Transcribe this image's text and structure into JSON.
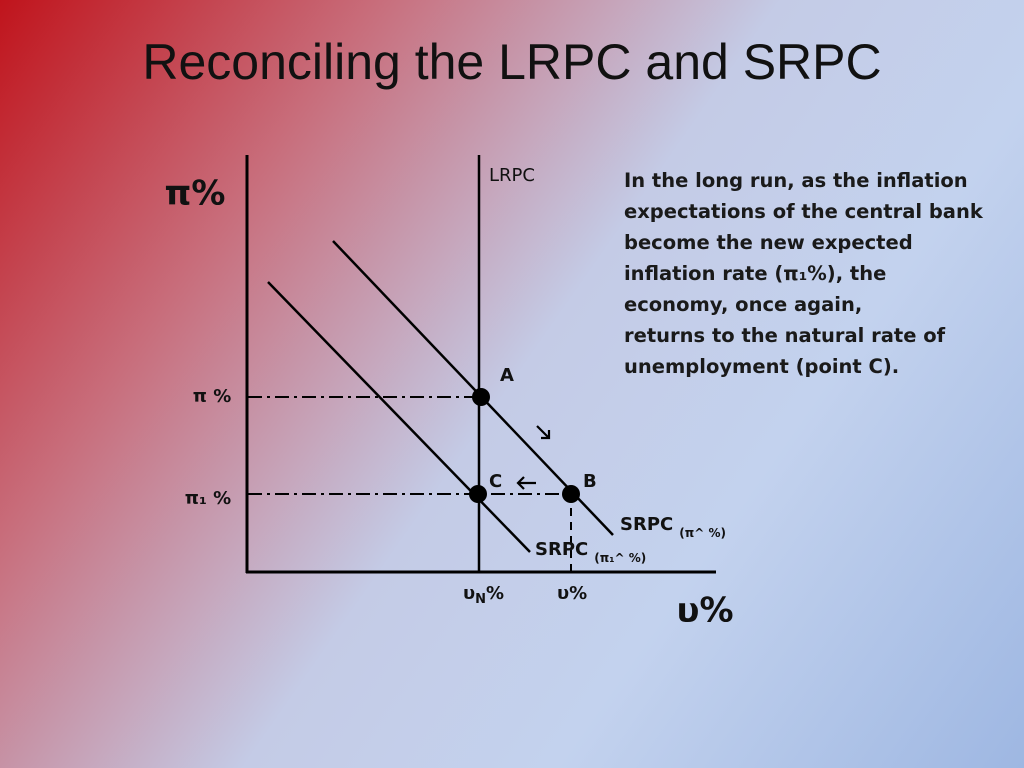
{
  "title": "Reconciling the LRPC and SRPC",
  "axes": {
    "y_title": "π%",
    "x_title": "υ%"
  },
  "levels": [
    "π %",
    "π₁ %"
  ],
  "x_levels": [
    {
      "base": "υ",
      "sub": "N",
      "rest": "%"
    },
    "υ%"
  ],
  "curves": [
    {
      "label": "LRPC"
    },
    {
      "label": "SRPC",
      "note": "(π^ %)"
    },
    {
      "label": "SRPC",
      "note": "(π₁^ %)"
    }
  ],
  "points": [
    {
      "label": "A"
    },
    {
      "label": "C"
    },
    {
      "label": "B"
    }
  ],
  "notes": [
    "In the long run, as the inflation",
    "expectations of the central bank",
    "become the new expected",
    "inflation rate (π₁%), the",
    "economy, once again,",
    "returns to the natural rate of",
    "unemployment  (point C)."
  ]
}
